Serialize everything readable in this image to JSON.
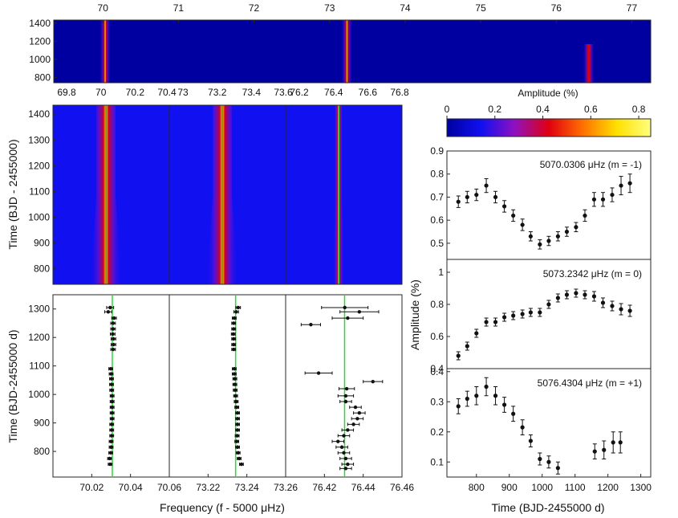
{
  "colors": {
    "frame": "#262626",
    "trend_line": "#22e02a",
    "marker": "#111111",
    "colormap": [
      "#0000a0",
      "#1010f0",
      "#9010c0",
      "#e00010",
      "#ff7000",
      "#ffe000",
      "#ffff80"
    ]
  },
  "chart_data": [
    {
      "id": "top_spectrogram",
      "type": "heatmap",
      "x_ticks": [
        "70",
        "71",
        "72",
        "73",
        "74",
        "75",
        "76",
        "77"
      ],
      "x_ticks_values": [
        70,
        71,
        72,
        73,
        74,
        75,
        76,
        77
      ],
      "xlim": [
        69.35,
        77.25
      ],
      "y_ticks": [
        "1400",
        "1200",
        "1000",
        "800"
      ],
      "y_ticks_values": [
        1400,
        1200,
        1000,
        800
      ],
      "ylim": [
        740,
        1435
      ],
      "ridges": [
        {
          "frequency": 70.03,
          "amplitude": 0.72
        },
        {
          "frequency": 73.23,
          "amplitude": 0.8
        },
        {
          "frequency": 76.43,
          "amplitude": 0.3
        }
      ]
    },
    {
      "id": "zoom_spectrograms",
      "type": "heatmap",
      "ylabel": "Time (BJD - 2455000)",
      "y_ticks": [
        "1400",
        "1300",
        "1200",
        "1100",
        "1000",
        "900",
        "800"
      ],
      "y_ticks_values": [
        1400,
        1300,
        1200,
        1100,
        1000,
        900,
        800
      ],
      "ylim": [
        740,
        1435
      ],
      "panels": [
        {
          "x_ticks": [
            "69.8",
            "70",
            "70.2",
            "70.4"
          ],
          "x_ticks_values": [
            69.8,
            70,
            70.2,
            70.4
          ],
          "xlim": [
            69.72,
            70.4
          ],
          "center": 70.03
        },
        {
          "x_ticks": [
            "73",
            "73.2",
            "73.4",
            "73.6"
          ],
          "x_ticks_values": [
            73,
            73.2,
            73.4,
            73.6
          ],
          "xlim": [
            72.92,
            73.6
          ],
          "center": 73.23
        },
        {
          "x_ticks": [
            "76.2",
            "76.4",
            "76.6",
            "76.8"
          ],
          "x_ticks_values": [
            76.2,
            76.4,
            76.6,
            76.8
          ],
          "xlim": [
            76.12,
            76.8
          ],
          "center": 76.43
        }
      ]
    },
    {
      "id": "colorbar",
      "type": "heatmap",
      "title": "Amplitude (%)",
      "ticks": [
        "0",
        "0.2",
        "0.4",
        "0.6",
        "0.8"
      ],
      "ticks_values": [
        0,
        0.2,
        0.4,
        0.6,
        0.8
      ],
      "range": [
        0,
        0.85
      ]
    },
    {
      "id": "frequency_vs_time",
      "type": "scatter",
      "xlabel": "Frequency (f - 5000 μHz)",
      "ylabel": "Time (BJD-2455000 d)",
      "y_ticks": [
        "1300",
        "1200",
        "1100",
        "1000",
        "900",
        "800"
      ],
      "y_ticks_values": [
        1300,
        1200,
        1100,
        1000,
        900,
        800
      ],
      "ylim": [
        710,
        1350
      ],
      "panels": [
        {
          "x_ticks": [
            "70.02",
            "70.04",
            "70.06"
          ],
          "x_ticks_values": [
            70.02,
            70.04,
            70.06
          ],
          "xlim": [
            70.0,
            70.06
          ],
          "line": 70.0306,
          "points": [
            {
              "t": 1305,
              "f": 70.0295,
              "e": 0.0018
            },
            {
              "t": 1290,
              "f": 70.0285,
              "e": 0.0018
            },
            {
              "t": 1268,
              "f": 70.0315,
              "e": 0.0012
            },
            {
              "t": 1250,
              "f": 70.031,
              "e": 0.0012
            },
            {
              "t": 1230,
              "f": 70.031,
              "e": 0.0012
            },
            {
              "t": 1212,
              "f": 70.0308,
              "e": 0.0012
            },
            {
              "t": 1195,
              "f": 70.0312,
              "e": 0.0012
            },
            {
              "t": 1175,
              "f": 70.0312,
              "e": 0.0012
            },
            {
              "t": 1158,
              "f": 70.031,
              "e": 0.0012
            },
            {
              "t": 1090,
              "f": 70.0298,
              "e": 0.001
            },
            {
              "t": 1072,
              "f": 70.03,
              "e": 0.001
            },
            {
              "t": 1055,
              "f": 70.0302,
              "e": 0.001
            },
            {
              "t": 1035,
              "f": 70.0302,
              "e": 0.001
            },
            {
              "t": 1015,
              "f": 70.0303,
              "e": 0.001
            },
            {
              "t": 995,
              "f": 70.0305,
              "e": 0.001
            },
            {
              "t": 975,
              "f": 70.0305,
              "e": 0.001
            },
            {
              "t": 955,
              "f": 70.0305,
              "e": 0.001
            },
            {
              "t": 935,
              "f": 70.0305,
              "e": 0.001
            },
            {
              "t": 915,
              "f": 70.0305,
              "e": 0.001
            },
            {
              "t": 895,
              "f": 70.0303,
              "e": 0.001
            },
            {
              "t": 875,
              "f": 70.0303,
              "e": 0.001
            },
            {
              "t": 855,
              "f": 70.0303,
              "e": 0.001
            },
            {
              "t": 835,
              "f": 70.03,
              "e": 0.001
            },
            {
              "t": 815,
              "f": 70.03,
              "e": 0.001
            },
            {
              "t": 795,
              "f": 70.0298,
              "e": 0.001
            },
            {
              "t": 775,
              "f": 70.0292,
              "e": 0.001
            },
            {
              "t": 755,
              "f": 70.0295,
              "e": 0.001
            }
          ]
        },
        {
          "x_ticks": [
            "73.22",
            "73.24",
            "73.26"
          ],
          "x_ticks_values": [
            73.22,
            73.24,
            73.26
          ],
          "xlim": [
            73.2,
            73.26
          ],
          "line": 73.2342,
          "points": [
            {
              "t": 1305,
              "f": 73.2355,
              "e": 0.0012
            },
            {
              "t": 1290,
              "f": 73.2345,
              "e": 0.0012
            },
            {
              "t": 1268,
              "f": 73.2335,
              "e": 0.001
            },
            {
              "t": 1250,
              "f": 73.2332,
              "e": 0.001
            },
            {
              "t": 1230,
              "f": 73.2332,
              "e": 0.001
            },
            {
              "t": 1212,
              "f": 73.233,
              "e": 0.001
            },
            {
              "t": 1195,
              "f": 73.2332,
              "e": 0.001
            },
            {
              "t": 1175,
              "f": 73.2332,
              "e": 0.001
            },
            {
              "t": 1158,
              "f": 73.2332,
              "e": 0.001
            },
            {
              "t": 1090,
              "f": 73.2335,
              "e": 0.001
            },
            {
              "t": 1072,
              "f": 73.2335,
              "e": 0.001
            },
            {
              "t": 1055,
              "f": 73.2338,
              "e": 0.001
            },
            {
              "t": 1035,
              "f": 73.2338,
              "e": 0.001
            },
            {
              "t": 1015,
              "f": 73.234,
              "e": 0.001
            },
            {
              "t": 995,
              "f": 73.2342,
              "e": 0.001
            },
            {
              "t": 975,
              "f": 73.2345,
              "e": 0.001
            },
            {
              "t": 955,
              "f": 73.2348,
              "e": 0.001
            },
            {
              "t": 935,
              "f": 73.2352,
              "e": 0.001
            },
            {
              "t": 915,
              "f": 73.2352,
              "e": 0.001
            },
            {
              "t": 895,
              "f": 73.2352,
              "e": 0.001
            },
            {
              "t": 875,
              "f": 73.2352,
              "e": 0.001
            },
            {
              "t": 855,
              "f": 73.235,
              "e": 0.001
            },
            {
              "t": 835,
              "f": 73.2348,
              "e": 0.001
            },
            {
              "t": 815,
              "f": 73.2352,
              "e": 0.001
            },
            {
              "t": 795,
              "f": 73.2355,
              "e": 0.001
            },
            {
              "t": 775,
              "f": 73.236,
              "e": 0.001
            },
            {
              "t": 755,
              "f": 73.2372,
              "e": 0.001
            }
          ]
        },
        {
          "x_ticks": [
            "76.42",
            "76.44",
            "76.46"
          ],
          "x_ticks_values": [
            76.42,
            76.44,
            76.46
          ],
          "xlim": [
            76.4,
            76.46
          ],
          "line": 76.4304,
          "points": [
            {
              "t": 1305,
              "f": 76.4305,
              "e": 0.012
            },
            {
              "t": 1290,
              "f": 76.438,
              "e": 0.01
            },
            {
              "t": 1268,
              "f": 76.432,
              "e": 0.008
            },
            {
              "t": 1245,
              "f": 76.413,
              "e": 0.005
            },
            {
              "t": 1075,
              "f": 76.417,
              "e": 0.007
            },
            {
              "t": 1045,
              "f": 76.445,
              "e": 0.005
            },
            {
              "t": 1020,
              "f": 76.4315,
              "e": 0.004
            },
            {
              "t": 995,
              "f": 76.431,
              "e": 0.004
            },
            {
              "t": 975,
              "f": 76.431,
              "e": 0.003
            },
            {
              "t": 955,
              "f": 76.436,
              "e": 0.003
            },
            {
              "t": 935,
              "f": 76.438,
              "e": 0.003
            },
            {
              "t": 915,
              "f": 76.437,
              "e": 0.003
            },
            {
              "t": 895,
              "f": 76.435,
              "e": 0.003
            },
            {
              "t": 875,
              "f": 76.432,
              "e": 0.003
            },
            {
              "t": 855,
              "f": 76.43,
              "e": 0.003
            },
            {
              "t": 835,
              "f": 76.427,
              "e": 0.003
            },
            {
              "t": 815,
              "f": 76.429,
              "e": 0.003
            },
            {
              "t": 795,
              "f": 76.43,
              "e": 0.003
            },
            {
              "t": 775,
              "f": 76.431,
              "e": 0.003
            },
            {
              "t": 755,
              "f": 76.432,
              "e": 0.003
            },
            {
              "t": 740,
              "f": 76.431,
              "e": 0.003
            }
          ]
        }
      ]
    },
    {
      "id": "amplitude_vs_time",
      "type": "scatter",
      "xlabel": "Time (BJD-2455000 d)",
      "ylabel": "Amplitude (%)",
      "x_ticks": [
        "800",
        "900",
        "1000",
        "1100",
        "1200",
        "1300"
      ],
      "x_ticks_values": [
        800,
        900,
        1000,
        1100,
        1200,
        1300
      ],
      "xlim": [
        720,
        1340
      ],
      "panels": [
        {
          "label": "5070.0306 μHz  (m = -1)",
          "y_ticks": [
            "0.9",
            "0.8",
            "0.7",
            "0.6",
            "0.5"
          ],
          "y_ticks_values": [
            0.9,
            0.8,
            0.7,
            0.6,
            0.5
          ],
          "ylim": [
            0.43,
            0.9
          ],
          "points": [
            {
              "t": 745,
              "a": 0.68,
              "e": 0.025
            },
            {
              "t": 772,
              "a": 0.7,
              "e": 0.025
            },
            {
              "t": 800,
              "a": 0.71,
              "e": 0.025
            },
            {
              "t": 830,
              "a": 0.75,
              "e": 0.03
            },
            {
              "t": 858,
              "a": 0.7,
              "e": 0.025
            },
            {
              "t": 885,
              "a": 0.66,
              "e": 0.025
            },
            {
              "t": 912,
              "a": 0.62,
              "e": 0.025
            },
            {
              "t": 940,
              "a": 0.58,
              "e": 0.025
            },
            {
              "t": 965,
              "a": 0.53,
              "e": 0.02
            },
            {
              "t": 993,
              "a": 0.495,
              "e": 0.02
            },
            {
              "t": 1020,
              "a": 0.51,
              "e": 0.02
            },
            {
              "t": 1048,
              "a": 0.53,
              "e": 0.02
            },
            {
              "t": 1075,
              "a": 0.55,
              "e": 0.02
            },
            {
              "t": 1103,
              "a": 0.57,
              "e": 0.02
            },
            {
              "t": 1130,
              "a": 0.62,
              "e": 0.025
            },
            {
              "t": 1158,
              "a": 0.69,
              "e": 0.03
            },
            {
              "t": 1185,
              "a": 0.69,
              "e": 0.03
            },
            {
              "t": 1213,
              "a": 0.71,
              "e": 0.03
            },
            {
              "t": 1240,
              "a": 0.75,
              "e": 0.04
            },
            {
              "t": 1267,
              "a": 0.76,
              "e": 0.04
            }
          ]
        },
        {
          "label": "5073.2342 μHz  (m = 0)",
          "y_ticks": [
            "1",
            "0.8",
            "0.6",
            "0.4"
          ],
          "y_ticks_values": [
            1,
            0.8,
            0.6,
            0.4
          ],
          "ylim": [
            0.4,
            1.08
          ],
          "points": [
            {
              "t": 745,
              "a": 0.48,
              "e": 0.025
            },
            {
              "t": 772,
              "a": 0.54,
              "e": 0.025
            },
            {
              "t": 800,
              "a": 0.62,
              "e": 0.025
            },
            {
              "t": 830,
              "a": 0.69,
              "e": 0.025
            },
            {
              "t": 858,
              "a": 0.69,
              "e": 0.025
            },
            {
              "t": 885,
              "a": 0.72,
              "e": 0.025
            },
            {
              "t": 912,
              "a": 0.73,
              "e": 0.025
            },
            {
              "t": 940,
              "a": 0.74,
              "e": 0.025
            },
            {
              "t": 965,
              "a": 0.75,
              "e": 0.025
            },
            {
              "t": 993,
              "a": 0.75,
              "e": 0.025
            },
            {
              "t": 1020,
              "a": 0.8,
              "e": 0.025
            },
            {
              "t": 1048,
              "a": 0.84,
              "e": 0.025
            },
            {
              "t": 1075,
              "a": 0.86,
              "e": 0.025
            },
            {
              "t": 1103,
              "a": 0.87,
              "e": 0.025
            },
            {
              "t": 1130,
              "a": 0.86,
              "e": 0.025
            },
            {
              "t": 1158,
              "a": 0.85,
              "e": 0.03
            },
            {
              "t": 1185,
              "a": 0.81,
              "e": 0.03
            },
            {
              "t": 1213,
              "a": 0.79,
              "e": 0.03
            },
            {
              "t": 1240,
              "a": 0.77,
              "e": 0.035
            },
            {
              "t": 1267,
              "a": 0.76,
              "e": 0.035
            }
          ]
        },
        {
          "label": "5076.4304 μHz  (m = +1)",
          "y_ticks": [
            "0.4",
            "0.3",
            "0.2",
            "0.1"
          ],
          "y_ticks_values": [
            0.4,
            0.3,
            0.2,
            0.1
          ],
          "ylim": [
            0.05,
            0.41
          ],
          "points": [
            {
              "t": 745,
              "a": 0.285,
              "e": 0.025
            },
            {
              "t": 772,
              "a": 0.31,
              "e": 0.025
            },
            {
              "t": 800,
              "a": 0.32,
              "e": 0.03
            },
            {
              "t": 830,
              "a": 0.35,
              "e": 0.03
            },
            {
              "t": 858,
              "a": 0.32,
              "e": 0.03
            },
            {
              "t": 885,
              "a": 0.29,
              "e": 0.025
            },
            {
              "t": 912,
              "a": 0.26,
              "e": 0.025
            },
            {
              "t": 940,
              "a": 0.215,
              "e": 0.025
            },
            {
              "t": 965,
              "a": 0.17,
              "e": 0.02
            },
            {
              "t": 993,
              "a": 0.11,
              "e": 0.02
            },
            {
              "t": 1020,
              "a": 0.1,
              "e": 0.02
            },
            {
              "t": 1048,
              "a": 0.08,
              "e": 0.02
            },
            {
              "t": 1160,
              "a": 0.135,
              "e": 0.025
            },
            {
              "t": 1188,
              "a": 0.14,
              "e": 0.03
            },
            {
              "t": 1216,
              "a": 0.165,
              "e": 0.035
            },
            {
              "t": 1238,
              "a": 0.165,
              "e": 0.035
            }
          ]
        }
      ]
    }
  ]
}
